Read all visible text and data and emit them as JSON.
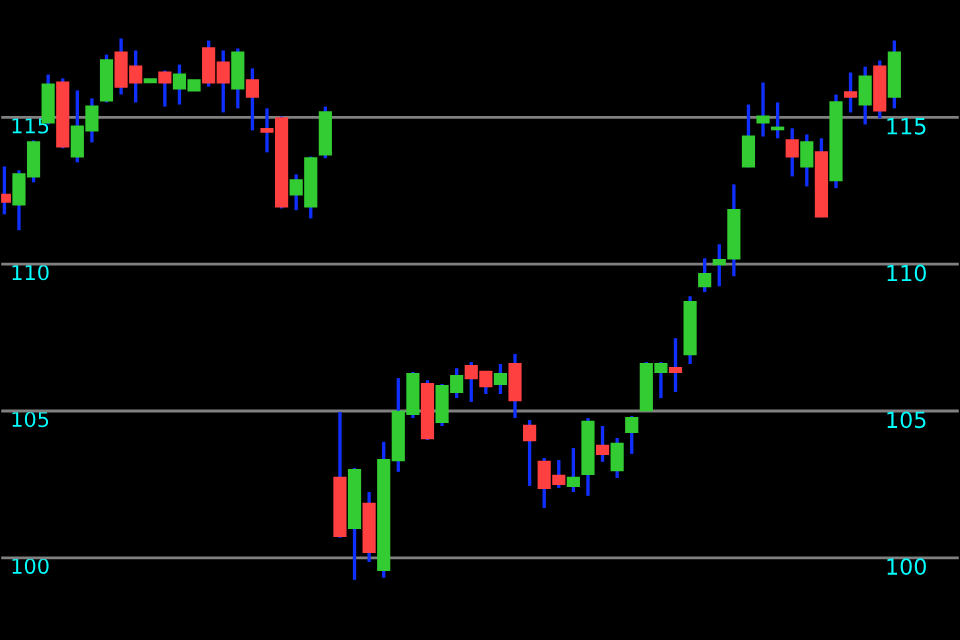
{
  "chart_data": {
    "type": "candlestick",
    "categories": [
      null,
      null,
      null,
      null,
      null,
      null,
      null,
      null,
      null,
      null,
      null,
      null,
      null,
      null,
      null,
      null,
      null,
      null,
      null,
      null,
      null,
      null,
      null,
      null,
      null,
      null,
      null,
      null,
      null,
      null,
      null,
      null,
      null,
      null,
      null,
      null,
      null,
      null,
      null,
      null,
      null,
      null,
      null,
      null,
      null,
      null,
      null,
      null,
      null,
      null,
      null,
      null,
      null,
      null,
      null,
      null,
      null,
      null,
      null,
      null,
      null,
      null
    ],
    "ohlc": [
      [
        112.36,
        113.33,
        111.7,
        112.13
      ],
      [
        112.04,
        113.2,
        111.16,
        113.06
      ],
      [
        112.99,
        114.22,
        112.79,
        114.15
      ],
      [
        114.83,
        116.46,
        114.76,
        116.12
      ],
      [
        116.19,
        116.33,
        113.95,
        114.01
      ],
      [
        113.67,
        115.92,
        113.47,
        114.69
      ],
      [
        114.56,
        115.65,
        114.15,
        115.37
      ],
      [
        115.58,
        117.14,
        115.51,
        116.94
      ],
      [
        117.21,
        117.69,
        115.78,
        116.05
      ],
      [
        116.73,
        117.28,
        115.51,
        116.19
      ],
      [
        116.2,
        116.3,
        116.2,
        116.3
      ],
      [
        116.53,
        116.6,
        115.37,
        116.19
      ],
      [
        115.99,
        116.8,
        115.44,
        116.46
      ],
      [
        115.92,
        116.26,
        115.92,
        116.26
      ],
      [
        117.35,
        117.62,
        116.05,
        116.19
      ],
      [
        116.87,
        117.28,
        115.17,
        116.19
      ],
      [
        115.99,
        117.35,
        115.31,
        117.21
      ],
      [
        116.26,
        116.67,
        114.56,
        115.71
      ],
      [
        114.6,
        115.31,
        113.81,
        114.52
      ],
      [
        114.97,
        115.03,
        111.9,
        111.97
      ],
      [
        112.38,
        113.06,
        111.84,
        112.86
      ],
      [
        111.97,
        113.67,
        111.56,
        113.61
      ],
      [
        113.74,
        115.37,
        113.61,
        115.17
      ],
      [
        102.72,
        104.97,
        100.68,
        100.75
      ],
      [
        101.02,
        103.06,
        99.25,
        102.99
      ],
      [
        101.84,
        102.24,
        99.86,
        100.2
      ],
      [
        99.59,
        103.95,
        99.32,
        103.33
      ],
      [
        103.33,
        106.12,
        102.93,
        104.97
      ],
      [
        104.9,
        106.33,
        104.76,
        106.26
      ],
      [
        105.92,
        106.05,
        104.01,
        104.08
      ],
      [
        104.63,
        105.92,
        104.49,
        105.85
      ],
      [
        105.65,
        106.46,
        105.44,
        106.19
      ],
      [
        106.53,
        106.67,
        105.31,
        106.12
      ],
      [
        106.33,
        106.33,
        105.58,
        105.85
      ],
      [
        105.92,
        106.6,
        105.58,
        106.26
      ],
      [
        106.6,
        106.94,
        104.76,
        105.37
      ],
      [
        104.49,
        104.69,
        102.45,
        104.01
      ],
      [
        103.27,
        103.4,
        101.7,
        102.38
      ],
      [
        102.79,
        103.33,
        102.38,
        102.52
      ],
      [
        102.45,
        103.74,
        102.24,
        102.72
      ],
      [
        102.86,
        104.76,
        102.11,
        104.63
      ],
      [
        103.81,
        104.49,
        103.27,
        103.54
      ],
      [
        102.99,
        104.08,
        102.72,
        103.88
      ],
      [
        104.29,
        104.83,
        103.54,
        104.76
      ],
      [
        105.03,
        106.67,
        105.0,
        106.6
      ],
      [
        106.33,
        106.67,
        105.44,
        106.6
      ],
      [
        106.46,
        107.48,
        105.65,
        106.33
      ],
      [
        106.94,
        108.91,
        106.6,
        108.71
      ],
      [
        109.25,
        110.2,
        109.05,
        109.66
      ],
      [
        110.0,
        110.68,
        109.25,
        110.14
      ],
      [
        110.2,
        112.72,
        109.59,
        111.84
      ],
      [
        113.33,
        115.44,
        113.3,
        114.35
      ],
      [
        114.83,
        116.19,
        114.35,
        115.03
      ],
      [
        114.6,
        115.51,
        114.29,
        114.65
      ],
      [
        114.22,
        114.63,
        112.99,
        113.67
      ],
      [
        113.33,
        114.42,
        112.65,
        114.15
      ],
      [
        113.81,
        114.29,
        111.6,
        111.63
      ],
      [
        112.86,
        115.78,
        112.59,
        115.51
      ],
      [
        115.85,
        116.53,
        115.17,
        115.71
      ],
      [
        115.44,
        116.73,
        114.76,
        116.39
      ],
      [
        116.73,
        116.94,
        114.97,
        115.24
      ],
      [
        115.71,
        117.62,
        115.31,
        117.21
      ]
    ],
    "colors": [
      "#ff4040",
      "#33cc33",
      "#33cc33",
      "#33cc33",
      "#ff4040",
      "#33cc33",
      "#33cc33",
      "#33cc33",
      "#ff4040",
      "#ff4040",
      "#33cc33",
      "#ff4040",
      "#33cc33",
      "#33cc33",
      "#ff4040",
      "#ff4040",
      "#33cc33",
      "#ff4040",
      "#ff4040",
      "#ff4040",
      "#33cc33",
      "#33cc33",
      "#33cc33",
      "#ff4040",
      "#33cc33",
      "#ff4040",
      "#33cc33",
      "#33cc33",
      "#33cc33",
      "#ff4040",
      "#33cc33",
      "#33cc33",
      "#ff4040",
      "#ff4040",
      "#33cc33",
      "#ff4040",
      "#ff4040",
      "#ff4040",
      "#ff4040",
      "#33cc33",
      "#33cc33",
      "#ff4040",
      "#33cc33",
      "#33cc33",
      "#33cc33",
      "#33cc33",
      "#ff4040",
      "#33cc33",
      "#33cc33",
      "#33cc33",
      "#33cc33",
      "#33cc33",
      "#33cc33",
      "#33cc33",
      "#ff4040",
      "#33cc33",
      "#ff4040",
      "#33cc33",
      "#ff4040",
      "#33cc33",
      "#ff4040",
      "#33cc33"
    ],
    "ylim": [
      97.2,
      119.0
    ],
    "yticks": [
      100,
      105,
      110,
      115
    ],
    "y2lim": [
      97.2,
      119.0
    ],
    "y2ticks": [
      100,
      105,
      110,
      115
    ],
    "tick_labels": "y",
    "grid": "y",
    "legend": false
  }
}
